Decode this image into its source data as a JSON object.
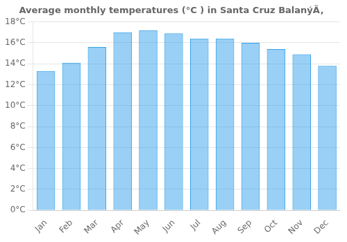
{
  "chart_data": {
    "type": "bar",
    "title": "Average monthly temperatures (°C ) in Santa Cruz BalanýÄ‚",
    "categories": [
      "Jan",
      "Feb",
      "Mar",
      "Apr",
      "May",
      "Jun",
      "Jul",
      "Aug",
      "Sep",
      "Oct",
      "Nov",
      "Dec"
    ],
    "values": [
      13.3,
      14.1,
      15.6,
      17.0,
      17.2,
      16.9,
      16.4,
      16.4,
      16.0,
      15.4,
      14.9,
      13.8
    ],
    "ylim": [
      0,
      18
    ],
    "yticks": [
      {
        "value": 0,
        "label": "0°C"
      },
      {
        "value": 2,
        "label": "2°C"
      },
      {
        "value": 4,
        "label": "4°C"
      },
      {
        "value": 6,
        "label": "6°C"
      },
      {
        "value": 8,
        "label": "8°C"
      },
      {
        "value": 10,
        "label": "10°C"
      },
      {
        "value": 12,
        "label": "12°C"
      },
      {
        "value": 14,
        "label": "14°C"
      },
      {
        "value": 16,
        "label": "16°C"
      },
      {
        "value": 18,
        "label": "18°C"
      }
    ],
    "grid": true
  }
}
